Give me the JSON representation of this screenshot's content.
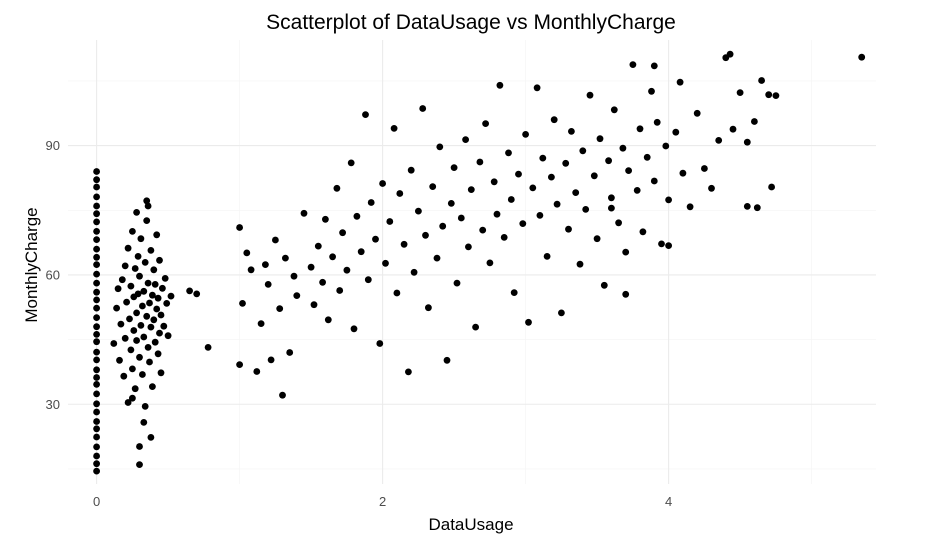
{
  "chart_data": {
    "type": "scatter",
    "title": "Scatterplot of DataUsage vs MonthlyCharge",
    "xlabel": "DataUsage",
    "ylabel": "MonthlyCharge",
    "xlim": [
      -0.2,
      5.45
    ],
    "ylim": [
      11.5,
      114.5
    ],
    "x_ticks": [
      0,
      2,
      4
    ],
    "y_ticks": [
      30,
      60,
      90
    ],
    "grid": true,
    "legend": "none",
    "point_color": "#000000",
    "series": [
      {
        "points": [
          [
            0.0,
            14.5
          ],
          [
            0.0,
            16.2
          ],
          [
            0.0,
            18.0
          ],
          [
            0.0,
            20.1
          ],
          [
            0.0,
            22.4
          ],
          [
            0.0,
            24.3
          ],
          [
            0.0,
            26.0
          ],
          [
            0.0,
            28.2
          ],
          [
            0.0,
            30.1
          ],
          [
            0.0,
            32.4
          ],
          [
            0.0,
            34.6
          ],
          [
            0.0,
            36.2
          ],
          [
            0.0,
            38.0
          ],
          [
            0.0,
            40.3
          ],
          [
            0.0,
            42.1
          ],
          [
            0.0,
            44.5
          ],
          [
            0.0,
            46.2
          ],
          [
            0.0,
            48.0
          ],
          [
            0.0,
            50.1
          ],
          [
            0.0,
            52.3
          ],
          [
            0.0,
            54.2
          ],
          [
            0.0,
            56.0
          ],
          [
            0.0,
            58.1
          ],
          [
            0.0,
            60.2
          ],
          [
            0.0,
            62.4
          ],
          [
            0.0,
            64.1
          ],
          [
            0.0,
            66.0
          ],
          [
            0.0,
            68.2
          ],
          [
            0.0,
            70.1
          ],
          [
            0.0,
            72.3
          ],
          [
            0.0,
            74.2
          ],
          [
            0.0,
            76.0
          ],
          [
            0.0,
            78.1
          ],
          [
            0.0,
            80.4
          ],
          [
            0.0,
            82.1
          ],
          [
            0.0,
            84.0
          ],
          [
            0.12,
            44.1
          ],
          [
            0.14,
            52.3
          ],
          [
            0.15,
            56.8
          ],
          [
            0.16,
            40.2
          ],
          [
            0.17,
            48.6
          ],
          [
            0.18,
            58.9
          ],
          [
            0.19,
            36.5
          ],
          [
            0.2,
            62.1
          ],
          [
            0.2,
            45.3
          ],
          [
            0.21,
            53.7
          ],
          [
            0.22,
            30.4
          ],
          [
            0.22,
            66.2
          ],
          [
            0.23,
            49.8
          ],
          [
            0.24,
            42.6
          ],
          [
            0.24,
            57.4
          ],
          [
            0.25,
            70.1
          ],
          [
            0.25,
            38.2
          ],
          [
            0.26,
            54.9
          ],
          [
            0.26,
            47.1
          ],
          [
            0.27,
            61.5
          ],
          [
            0.27,
            33.6
          ],
          [
            0.28,
            51.2
          ],
          [
            0.28,
            44.8
          ],
          [
            0.29,
            64.3
          ],
          [
            0.29,
            55.6
          ],
          [
            0.3,
            20.2
          ],
          [
            0.3,
            40.9
          ],
          [
            0.3,
            59.7
          ],
          [
            0.31,
            48.3
          ],
          [
            0.31,
            68.4
          ],
          [
            0.32,
            52.8
          ],
          [
            0.32,
            36.9
          ],
          [
            0.33,
            56.2
          ],
          [
            0.33,
            45.6
          ],
          [
            0.34,
            62.9
          ],
          [
            0.34,
            29.5
          ],
          [
            0.35,
            50.4
          ],
          [
            0.35,
            72.6
          ],
          [
            0.36,
            43.2
          ],
          [
            0.36,
            58.1
          ],
          [
            0.37,
            53.5
          ],
          [
            0.37,
            39.8
          ],
          [
            0.38,
            65.7
          ],
          [
            0.38,
            47.9
          ],
          [
            0.39,
            55.3
          ],
          [
            0.39,
            34.1
          ],
          [
            0.4,
            61.2
          ],
          [
            0.4,
            49.6
          ],
          [
            0.41,
            44.4
          ],
          [
            0.41,
            57.8
          ],
          [
            0.42,
            52.1
          ],
          [
            0.42,
            69.3
          ],
          [
            0.43,
            41.7
          ],
          [
            0.43,
            54.6
          ],
          [
            0.44,
            46.5
          ],
          [
            0.44,
            63.4
          ],
          [
            0.45,
            50.7
          ],
          [
            0.45,
            37.3
          ],
          [
            0.46,
            56.9
          ],
          [
            0.47,
            48.1
          ],
          [
            0.48,
            59.2
          ],
          [
            0.49,
            53.4
          ],
          [
            0.5,
            45.9
          ],
          [
            0.52,
            55.1
          ],
          [
            0.3,
            16.0
          ],
          [
            0.33,
            25.8
          ],
          [
            0.28,
            74.5
          ],
          [
            0.35,
            77.2
          ],
          [
            0.38,
            22.3
          ],
          [
            0.25,
            31.4
          ],
          [
            0.36,
            76.0
          ],
          [
            0.65,
            56.3
          ],
          [
            0.7,
            55.6
          ],
          [
            0.78,
            43.2
          ],
          [
            1.0,
            39.2
          ],
          [
            1.0,
            71.0
          ],
          [
            1.02,
            53.4
          ],
          [
            1.05,
            65.1
          ],
          [
            1.08,
            61.2
          ],
          [
            1.12,
            37.6
          ],
          [
            1.15,
            48.7
          ],
          [
            1.18,
            62.4
          ],
          [
            1.2,
            57.8
          ],
          [
            1.22,
            40.3
          ],
          [
            1.25,
            68.1
          ],
          [
            1.28,
            52.2
          ],
          [
            1.3,
            32.1
          ],
          [
            1.32,
            63.9
          ],
          [
            1.35,
            42.0
          ],
          [
            1.38,
            59.7
          ],
          [
            1.4,
            55.2
          ],
          [
            1.45,
            74.3
          ],
          [
            1.5,
            61.8
          ],
          [
            1.52,
            53.1
          ],
          [
            1.55,
            66.7
          ],
          [
            1.58,
            58.3
          ],
          [
            1.6,
            72.9
          ],
          [
            1.62,
            49.6
          ],
          [
            1.65,
            64.2
          ],
          [
            1.68,
            80.1
          ],
          [
            1.7,
            56.4
          ],
          [
            1.72,
            69.8
          ],
          [
            1.75,
            61.1
          ],
          [
            1.78,
            86.0
          ],
          [
            1.8,
            47.5
          ],
          [
            1.82,
            73.6
          ],
          [
            1.85,
            65.4
          ],
          [
            1.88,
            97.2
          ],
          [
            1.9,
            58.9
          ],
          [
            1.92,
            76.8
          ],
          [
            1.95,
            68.3
          ],
          [
            1.98,
            44.1
          ],
          [
            2.0,
            81.2
          ],
          [
            2.02,
            62.7
          ],
          [
            2.05,
            72.4
          ],
          [
            2.08,
            94.0
          ],
          [
            2.1,
            55.8
          ],
          [
            2.12,
            78.9
          ],
          [
            2.15,
            67.1
          ],
          [
            2.18,
            37.5
          ],
          [
            2.2,
            84.3
          ],
          [
            2.22,
            60.6
          ],
          [
            2.25,
            74.8
          ],
          [
            2.28,
            98.6
          ],
          [
            2.3,
            69.2
          ],
          [
            2.32,
            52.4
          ],
          [
            2.35,
            80.5
          ],
          [
            2.38,
            63.9
          ],
          [
            2.4,
            89.7
          ],
          [
            2.42,
            71.3
          ],
          [
            2.45,
            40.2
          ],
          [
            2.48,
            76.6
          ],
          [
            2.5,
            84.9
          ],
          [
            2.52,
            58.1
          ],
          [
            2.55,
            73.2
          ],
          [
            2.58,
            91.4
          ],
          [
            2.6,
            66.5
          ],
          [
            2.62,
            79.8
          ],
          [
            2.65,
            47.9
          ],
          [
            2.68,
            86.2
          ],
          [
            2.7,
            70.4
          ],
          [
            2.72,
            95.1
          ],
          [
            2.75,
            62.8
          ],
          [
            2.78,
            81.6
          ],
          [
            2.8,
            74.1
          ],
          [
            2.82,
            104.0
          ],
          [
            2.85,
            68.7
          ],
          [
            2.88,
            88.3
          ],
          [
            2.9,
            77.5
          ],
          [
            2.92,
            55.9
          ],
          [
            2.95,
            83.4
          ],
          [
            2.98,
            71.9
          ],
          [
            3.0,
            92.6
          ],
          [
            3.02,
            49.0
          ],
          [
            3.05,
            80.2
          ],
          [
            3.08,
            103.4
          ],
          [
            3.1,
            73.8
          ],
          [
            3.12,
            87.1
          ],
          [
            3.15,
            64.3
          ],
          [
            3.18,
            82.7
          ],
          [
            3.2,
            96.0
          ],
          [
            3.22,
            76.4
          ],
          [
            3.25,
            51.2
          ],
          [
            3.28,
            85.9
          ],
          [
            3.3,
            70.6
          ],
          [
            3.32,
            93.3
          ],
          [
            3.35,
            79.1
          ],
          [
            3.38,
            62.5
          ],
          [
            3.4,
            88.8
          ],
          [
            3.42,
            75.2
          ],
          [
            3.45,
            101.7
          ],
          [
            3.48,
            83.0
          ],
          [
            3.5,
            68.4
          ],
          [
            3.52,
            91.6
          ],
          [
            3.55,
            57.6
          ],
          [
            3.58,
            86.5
          ],
          [
            3.6,
            77.9
          ],
          [
            3.62,
            98.3
          ],
          [
            3.65,
            72.1
          ],
          [
            3.68,
            89.4
          ],
          [
            3.7,
            55.5
          ],
          [
            3.72,
            84.2
          ],
          [
            3.75,
            108.8
          ],
          [
            3.78,
            79.6
          ],
          [
            3.8,
            93.9
          ],
          [
            3.82,
            70.0
          ],
          [
            3.85,
            87.3
          ],
          [
            3.88,
            102.6
          ],
          [
            3.9,
            81.8
          ],
          [
            3.92,
            95.4
          ],
          [
            3.95,
            67.2
          ],
          [
            3.98,
            89.9
          ],
          [
            4.0,
            77.4
          ],
          [
            4.05,
            93.1
          ],
          [
            4.08,
            104.7
          ],
          [
            4.1,
            83.6
          ],
          [
            4.15,
            75.8
          ],
          [
            4.2,
            97.5
          ],
          [
            4.25,
            84.7
          ],
          [
            4.3,
            80.1
          ],
          [
            4.35,
            91.2
          ],
          [
            4.4,
            110.4
          ],
          [
            4.45,
            93.8
          ],
          [
            4.5,
            102.3
          ],
          [
            4.55,
            75.9
          ],
          [
            4.6,
            95.6
          ],
          [
            4.65,
            105.1
          ],
          [
            4.7,
            101.8
          ],
          [
            4.72,
            80.4
          ],
          [
            4.75,
            101.6
          ],
          [
            4.43,
            111.2
          ],
          [
            4.55,
            90.8
          ],
          [
            4.62,
            75.6
          ],
          [
            4.0,
            66.8
          ],
          [
            3.9,
            108.5
          ],
          [
            3.6,
            75.5
          ],
          [
            3.7,
            65.3
          ],
          [
            5.35,
            110.5
          ]
        ]
      }
    ]
  }
}
